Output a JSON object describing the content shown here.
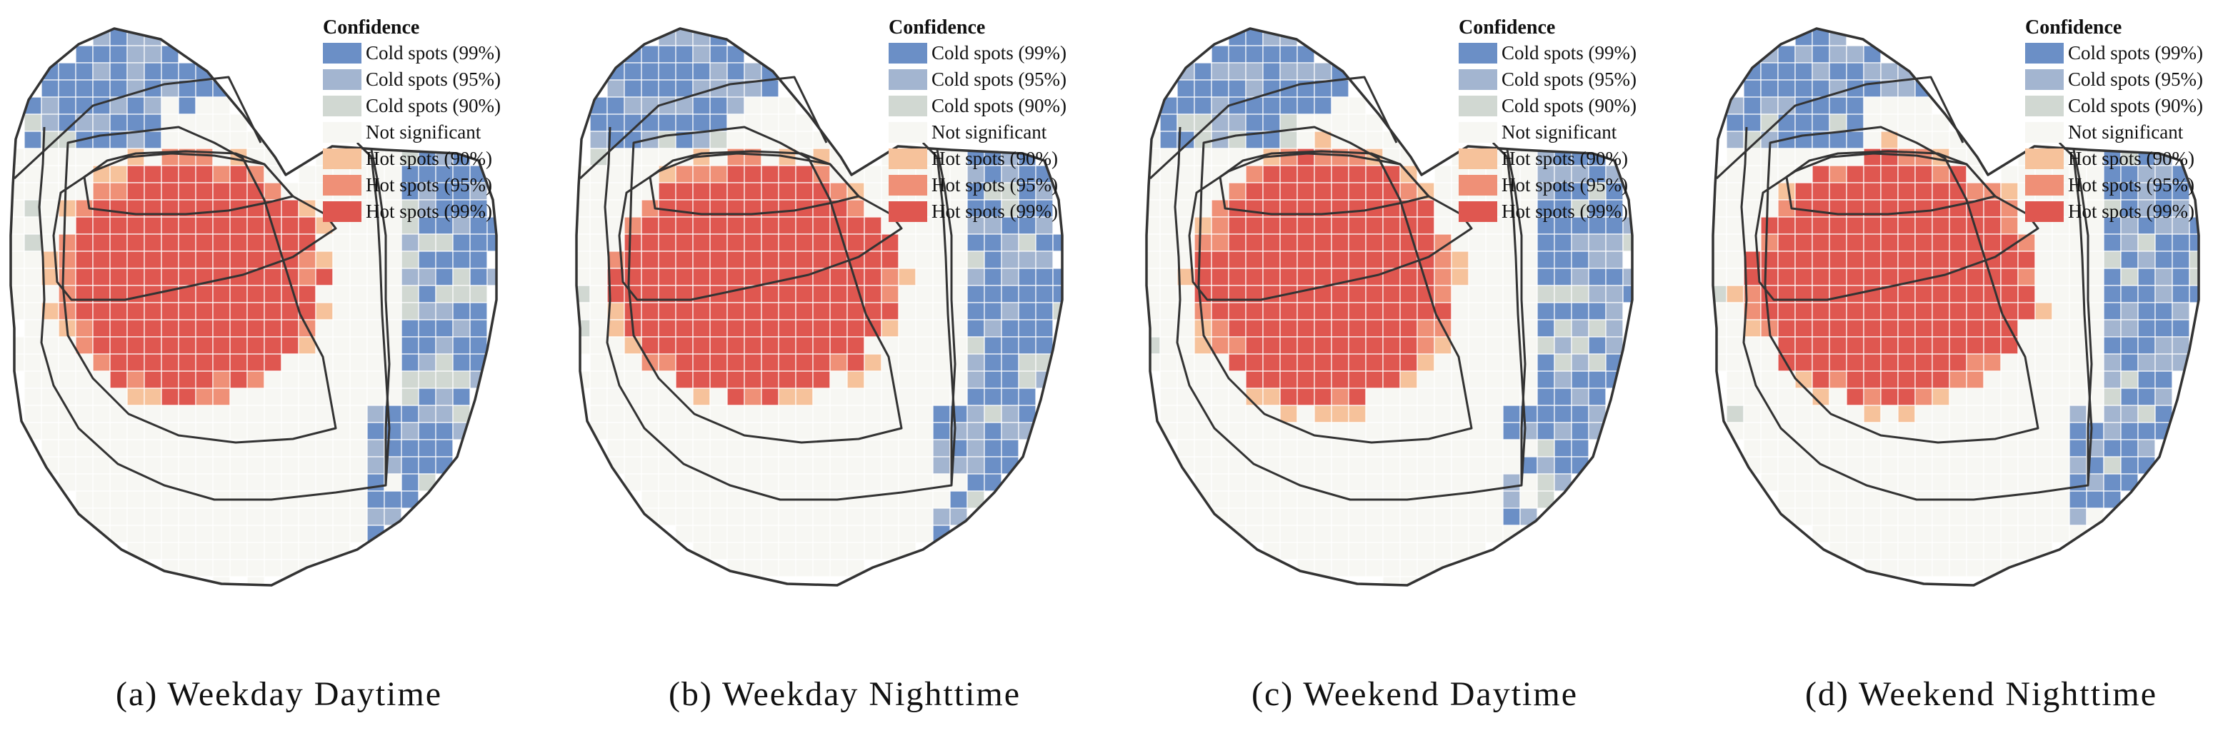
{
  "figure": {
    "legend_title": "Confidence",
    "legend_items": [
      {
        "label": "Cold spots (99%)",
        "color": "#6b8fc6"
      },
      {
        "label": "Cold spots (95%)",
        "color": "#a3b5d0"
      },
      {
        "label": "Cold spots (90%)",
        "color": "#d1d8d2"
      },
      {
        "label": "Not significant",
        "color": "#f7f7f3"
      },
      {
        "label": "Hot spots (90%)",
        "color": "#f6c29b"
      },
      {
        "label": "Hot spots (95%)",
        "color": "#ef9077"
      },
      {
        "label": "Hot spots (99%)",
        "color": "#df5750"
      }
    ],
    "panels": [
      {
        "caption": "(a) Weekday Daytime"
      },
      {
        "caption": "(b) Weekday Nighttime"
      },
      {
        "caption": "(c) Weekend Daytime"
      },
      {
        "caption": "(d) Weekend Nighttime"
      }
    ]
  }
}
